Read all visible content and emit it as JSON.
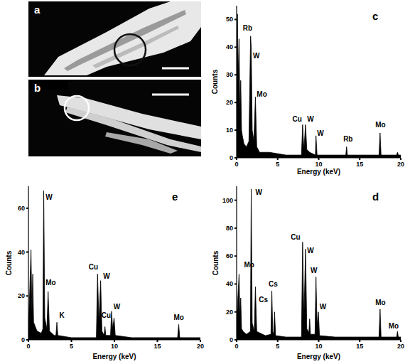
{
  "images": [
    {
      "label": "a"
    },
    {
      "label": "b"
    }
  ],
  "chart_data": [
    {
      "type": "area",
      "label": "c",
      "color": "#000000",
      "x_label": "Energy (keV)",
      "y_label": "Counts",
      "xlim": [
        0,
        20
      ],
      "xticks": [
        0,
        5,
        10,
        15,
        20
      ],
      "ylim": [
        0,
        55
      ],
      "yticks": [
        0,
        10,
        20,
        30,
        40,
        50
      ],
      "x": [
        0,
        0.1,
        0.2,
        0.3,
        0.4,
        0.5,
        0.6,
        0.7,
        0.9,
        1.2,
        1.5,
        1.7,
        1.78,
        1.9,
        2.1,
        2.29,
        2.45,
        2.8,
        4,
        6,
        7.9,
        8.04,
        8.2,
        8.4,
        8.55,
        8.9,
        9.6,
        9.67,
        9.8,
        11,
        13.3,
        13.4,
        13.5,
        15,
        17.35,
        17.48,
        17.6,
        19.5,
        19.6,
        19.7,
        20
      ],
      "values": [
        20,
        52,
        30,
        43,
        15,
        28,
        10,
        8,
        5,
        4,
        6,
        44,
        40,
        10,
        6,
        22,
        4,
        2,
        2,
        1,
        1,
        12,
        3,
        12,
        3,
        2,
        1,
        8,
        1,
        1,
        1,
        4,
        1,
        1,
        1,
        9,
        1,
        1,
        2,
        1,
        1
      ],
      "annotations": [
        {
          "text": "Rb",
          "x": 0.75,
          "y": 46
        },
        {
          "text": "W",
          "x": 2.0,
          "y": 36
        },
        {
          "text": "Mo",
          "x": 2.45,
          "y": 22
        },
        {
          "text": "Cu",
          "x": 6.8,
          "y": 13
        },
        {
          "text": "W",
          "x": 8.6,
          "y": 13
        },
        {
          "text": "W",
          "x": 9.8,
          "y": 8
        },
        {
          "text": "Rb",
          "x": 13.0,
          "y": 6
        },
        {
          "text": "Mo",
          "x": 16.9,
          "y": 11
        }
      ]
    },
    {
      "type": "area",
      "label": "d",
      "color": "#000000",
      "x_label": "Energy (keV)",
      "y_label": "Counts",
      "xlim": [
        0,
        20
      ],
      "xticks": [
        0,
        5,
        10,
        15,
        20
      ],
      "ylim": [
        0,
        110
      ],
      "yticks": [
        0,
        20,
        40,
        60,
        80,
        100
      ],
      "x": [
        0,
        0.15,
        0.3,
        0.4,
        0.5,
        0.6,
        0.8,
        1.2,
        1.68,
        1.78,
        1.9,
        2.15,
        2.29,
        2.45,
        3.5,
        4.18,
        4.29,
        4.4,
        4.52,
        4.62,
        4.75,
        6,
        7.9,
        8.04,
        8.2,
        8.4,
        8.55,
        8.8,
        8.9,
        9.0,
        9.55,
        9.67,
        9.8,
        9.96,
        10.1,
        12,
        17.35,
        17.48,
        17.6,
        19.5,
        19.6,
        19.7,
        20
      ],
      "values": [
        10,
        30,
        47,
        15,
        30,
        8,
        6,
        4,
        6,
        108,
        12,
        6,
        38,
        6,
        3,
        4,
        35,
        6,
        4,
        20,
        3,
        2,
        2,
        70,
        15,
        65,
        8,
        5,
        15,
        4,
        4,
        45,
        10,
        20,
        3,
        2,
        2,
        22,
        2,
        2,
        6,
        2,
        2
      ],
      "annotations": [
        {
          "text": "W",
          "x": 2.3,
          "y": 104
        },
        {
          "text": "Mo",
          "x": 0.9,
          "y": 52
        },
        {
          "text": "Cs",
          "x": 3.9,
          "y": 38
        },
        {
          "text": "Cs",
          "x": 2.7,
          "y": 27
        },
        {
          "text": "Cu",
          "x": 6.6,
          "y": 72
        },
        {
          "text": "W",
          "x": 8.6,
          "y": 62
        },
        {
          "text": "W",
          "x": 9.0,
          "y": 48
        },
        {
          "text": "W",
          "x": 10.1,
          "y": 22
        },
        {
          "text": "Mo",
          "x": 16.9,
          "y": 25
        },
        {
          "text": "Mo",
          "x": 18.5,
          "y": 8
        }
      ]
    },
    {
      "type": "area",
      "label": "e",
      "color": "#000000",
      "x_label": "Energy (keV)",
      "y_label": "Counts",
      "xlim": [
        0,
        20
      ],
      "xticks": [
        0,
        5,
        10,
        15,
        20
      ],
      "ylim": [
        0,
        70
      ],
      "yticks": [
        0,
        20,
        40,
        60
      ],
      "x": [
        0,
        0.15,
        0.3,
        0.4,
        0.5,
        0.6,
        0.8,
        1.0,
        1.5,
        1.68,
        1.78,
        1.9,
        2.15,
        2.29,
        2.45,
        3.0,
        3.2,
        3.31,
        3.42,
        5,
        7.9,
        8.04,
        8.2,
        8.4,
        8.55,
        8.8,
        8.9,
        9.0,
        9.55,
        9.67,
        9.8,
        9.96,
        10.1,
        12,
        17.35,
        17.48,
        17.6,
        20
      ],
      "values": [
        5,
        22,
        41,
        12,
        30,
        8,
        6,
        4,
        3,
        5,
        68,
        10,
        5,
        22,
        4,
        2,
        2,
        8,
        2,
        1,
        1,
        30,
        8,
        27,
        4,
        2,
        6,
        2,
        2,
        13,
        5,
        10,
        2,
        1,
        1,
        7,
        1,
        1
      ],
      "annotations": [
        {
          "text": "W",
          "x": 2.0,
          "y": 64
        },
        {
          "text": "Mo",
          "x": 2.0,
          "y": 25
        },
        {
          "text": "K",
          "x": 3.6,
          "y": 10
        },
        {
          "text": "Cu",
          "x": 7.0,
          "y": 32
        },
        {
          "text": "W",
          "x": 8.7,
          "y": 28
        },
        {
          "text": "Cu",
          "x": 8.5,
          "y": 10
        },
        {
          "text": "W",
          "x": 9.9,
          "y": 14
        },
        {
          "text": "Mo",
          "x": 16.9,
          "y": 9
        }
      ]
    }
  ]
}
